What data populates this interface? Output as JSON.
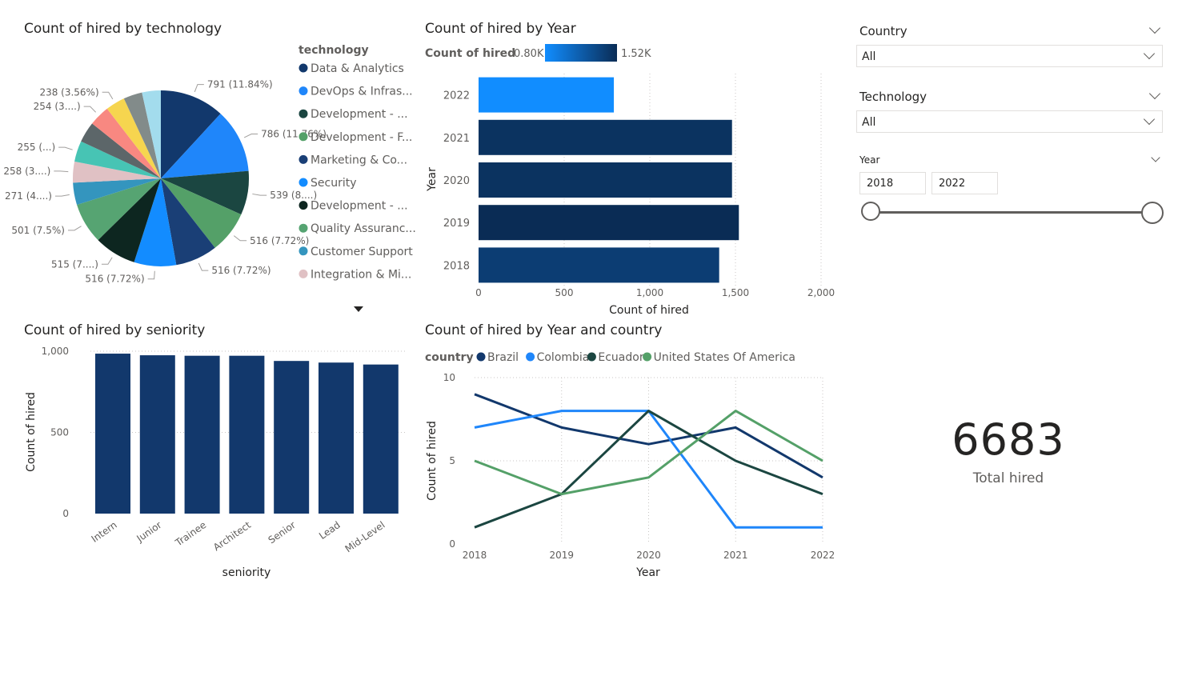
{
  "pie": {
    "title": "Count of hired by technology",
    "legend_title": "technology",
    "legend_items": [
      {
        "label": "Data & Analytics",
        "color": "#12386c"
      },
      {
        "label": "DevOps & Infras...",
        "color": "#1f86fa"
      },
      {
        "label": "Development - ...",
        "color": "#1b4641"
      },
      {
        "label": "Development - F...",
        "color": "#54a068"
      },
      {
        "label": "Marketing & Co...",
        "color": "#1a3f76"
      },
      {
        "label": "Security",
        "color": "#138cff"
      },
      {
        "label": "Development - ...",
        "color": "#0d2620"
      },
      {
        "label": "Quality Assuranc...",
        "color": "#56a472"
      },
      {
        "label": "Customer Support",
        "color": "#3495be"
      },
      {
        "label": "Integration & Mi...",
        "color": "#e0c1c4"
      }
    ],
    "more_icon": "caret-down-icon",
    "slices": [
      {
        "value": 791,
        "label": "791 (11.84%)",
        "color": "#12386c"
      },
      {
        "value": 786,
        "label": "786 (11.76%)",
        "color": "#1f86fa"
      },
      {
        "value": 539,
        "label": "539 (8....)",
        "color": "#1b4641"
      },
      {
        "value": 516,
        "label": "516 (7.72%)",
        "color": "#54a068"
      },
      {
        "value": 516,
        "label": "516 (7.72%)",
        "color": "#1a3f76"
      },
      {
        "value": 516,
        "label": "516 (7.72%)",
        "color": "#138cff"
      },
      {
        "value": 515,
        "label": "515 (7....)",
        "color": "#0d2620"
      },
      {
        "value": 501,
        "label": "501 (7.5%)",
        "color": "#56a472"
      },
      {
        "value": 271,
        "label": "271 (4....)",
        "color": "#3495be"
      },
      {
        "value": 258,
        "label": "258 (3....)",
        "color": "#e0c1c4"
      },
      {
        "value": 255,
        "label": "255 (...)",
        "color": "#47c4b4"
      },
      {
        "value": 255,
        "label": "",
        "color": "#5c6669"
      },
      {
        "value": 254,
        "label": "254 (3....)",
        "color": "#f88881"
      },
      {
        "value": 238,
        "label": "238 (3.56%)",
        "color": "#f6d54f"
      },
      {
        "value": 230,
        "label": "",
        "color": "#828b8a"
      },
      {
        "value": 230,
        "label": "",
        "color": "#a3dced"
      }
    ]
  },
  "year_bar": {
    "title": "Count of hired by Year",
    "legend_label": "Count of hired",
    "scale_min": "0.80K",
    "scale_max": "1.52K",
    "y_title": "Year",
    "x_title": "Count of hired",
    "x_ticks": [
      "0",
      "500",
      "1,000",
      "1,500",
      "2,000"
    ]
  },
  "seniority_bar": {
    "title": "Count of hired by seniority",
    "x_title": "seniority",
    "y_title": "Count of hired",
    "y_ticks": [
      "0",
      "500",
      "1,000"
    ]
  },
  "line": {
    "title": "Count of hired by Year and country",
    "legend_title": "country",
    "x_title": "Year",
    "y_title": "Count of hired",
    "y_ticks": [
      "0",
      "5",
      "10"
    ]
  },
  "slicers": {
    "country": {
      "label": "Country",
      "value": "All"
    },
    "technology": {
      "label": "Technology",
      "value": "All"
    },
    "year": {
      "label": "Year",
      "from": "2018",
      "to": "2022",
      "range": [
        2018,
        2022
      ]
    }
  },
  "kpi": {
    "value": "6683",
    "label": "Total hired"
  },
  "chart_data": [
    {
      "type": "pie",
      "title": "Count of hired by technology",
      "legend_title": "technology",
      "values": [
        791,
        786,
        539,
        516,
        516,
        516,
        515,
        501,
        271,
        258,
        255,
        255,
        254,
        238,
        230,
        230
      ]
    },
    {
      "type": "bar",
      "orientation": "horizontal",
      "title": "Count of hired by Year",
      "categories": [
        "2022",
        "2021",
        "2020",
        "2019",
        "2018"
      ],
      "values": [
        790,
        1480,
        1480,
        1520,
        1405
      ],
      "colors": [
        "#118dff",
        "#0b3360",
        "#0b3360",
        "#0a2c55",
        "#0c3d73"
      ],
      "xlabel": "Count of hired",
      "ylabel": "Year",
      "xlim": [
        0,
        2000
      ],
      "grid": true
    },
    {
      "type": "bar",
      "title": "Count of hired by seniority",
      "categories": [
        "Intern",
        "Junior",
        "Trainee",
        "Architect",
        "Senior",
        "Lead",
        "Mid-Level"
      ],
      "values": [
        985,
        975,
        972,
        972,
        940,
        930,
        918
      ],
      "color": "#12386c",
      "xlabel": "seniority",
      "ylabel": "Count of hired",
      "ylim": [
        0,
        1000
      ],
      "grid": true
    },
    {
      "type": "line",
      "title": "Count of hired by Year and country",
      "x": [
        "2018",
        "2019",
        "2020",
        "2021",
        "2022"
      ],
      "series": [
        {
          "name": "Brazil",
          "color": "#12386c",
          "values": [
            9,
            7,
            6,
            7,
            4
          ]
        },
        {
          "name": "Colombia",
          "color": "#1f86fa",
          "values": [
            7,
            8,
            8,
            1,
            1
          ]
        },
        {
          "name": "Ecuador",
          "color": "#1b4641",
          "values": [
            1,
            3,
            8,
            5,
            3
          ]
        },
        {
          "name": "United States Of America",
          "color": "#54a068",
          "values": [
            5,
            3,
            4,
            8,
            5
          ]
        }
      ],
      "xlabel": "Year",
      "ylabel": "Count of hired",
      "ylim": [
        0,
        10
      ],
      "grid": true
    }
  ]
}
